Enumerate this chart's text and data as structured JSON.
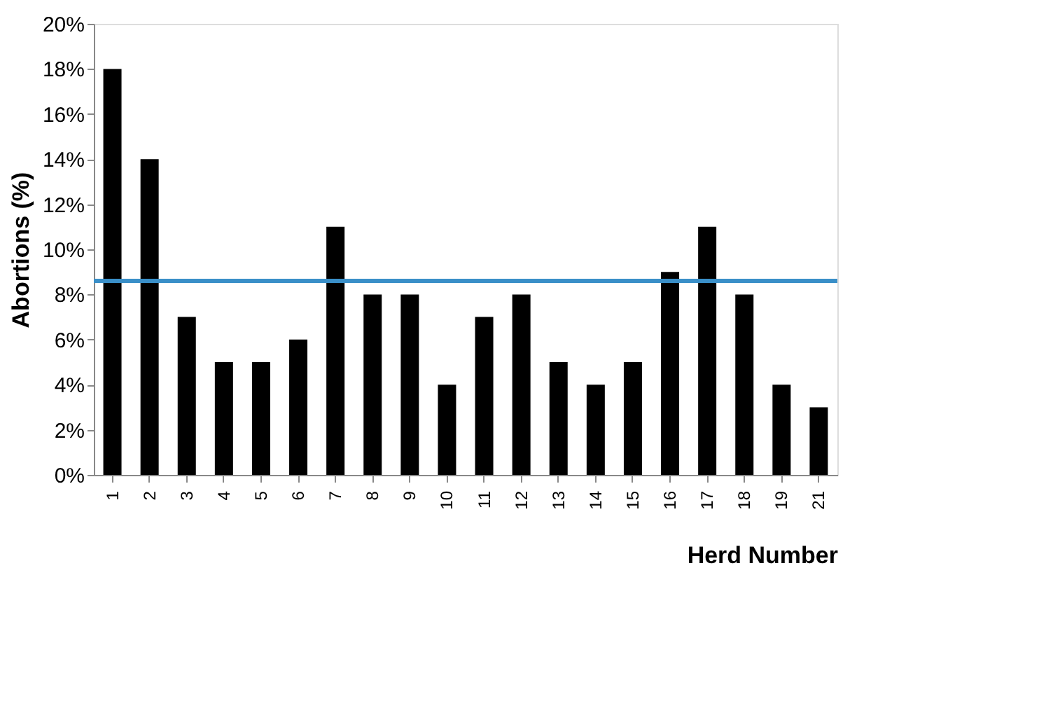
{
  "chart_data": {
    "type": "bar",
    "xlabel": "Herd Number",
    "ylabel": "Abortions (%)",
    "categories": [
      "1",
      "2",
      "3",
      "4",
      "5",
      "6",
      "7",
      "8",
      "9",
      "10",
      "11",
      "12",
      "13",
      "14",
      "15",
      "16",
      "17",
      "18",
      "19",
      "21"
    ],
    "values": [
      18,
      14,
      7,
      5,
      5,
      6,
      11,
      8,
      8,
      4,
      7,
      8,
      5,
      4,
      5,
      9,
      11,
      8,
      4,
      3
    ],
    "color": "#000000",
    "ylim": [
      0,
      20
    ],
    "yticks": [
      {
        "value": 0,
        "label": "0%"
      },
      {
        "value": 2,
        "label": "2%"
      },
      {
        "value": 4,
        "label": "4%"
      },
      {
        "value": 6,
        "label": "6%"
      },
      {
        "value": 8,
        "label": "8%"
      },
      {
        "value": 10,
        "label": "10%"
      },
      {
        "value": 12,
        "label": "12%"
      },
      {
        "value": 14,
        "label": "14%"
      },
      {
        "value": 16,
        "label": "16%"
      },
      {
        "value": 18,
        "label": "18%"
      },
      {
        "value": 20,
        "label": "20%"
      }
    ],
    "ref_lines": [
      {
        "axis": "y",
        "value": 8.6,
        "color": "#3a8fc8"
      }
    ],
    "grid": false
  }
}
